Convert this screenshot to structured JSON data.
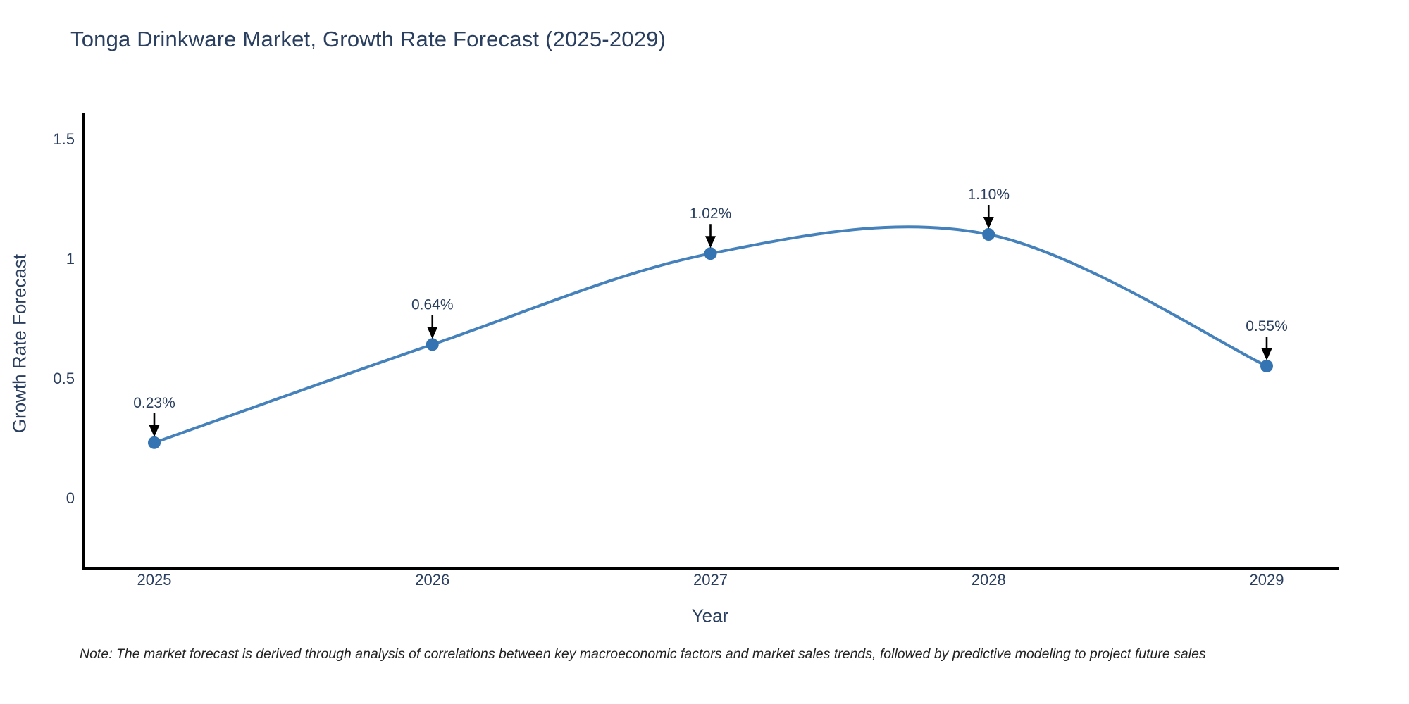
{
  "title": {
    "text": "Tonga Drinkware Market, Growth Rate Forecast (2025-2029)"
  },
  "note": {
    "text": "Note: The market forecast is derived through analysis of correlations between key macroeconomic factors and market sales trends, followed by predictive modeling to project future sales"
  },
  "chart_data": {
    "type": "line",
    "title": "Tonga Drinkware Market, Growth Rate Forecast (2025-2029)",
    "x": [
      2025,
      2026,
      2027,
      2028,
      2029
    ],
    "x_tick_labels": [
      "2025",
      "2026",
      "2027",
      "2028",
      "2029"
    ],
    "series": [
      {
        "name": "Growth Rate Forecast",
        "values": [
          0.23,
          0.64,
          1.02,
          1.1,
          0.55
        ]
      }
    ],
    "point_labels": [
      "0.23%",
      "0.64%",
      "1.02%",
      "1.10%",
      "0.55%"
    ],
    "xlabel": "Year",
    "ylabel": "Growth Rate Forecast",
    "yticks": [
      0,
      0.5,
      1,
      1.5
    ],
    "ytick_labels": [
      "0",
      "0.5",
      "1",
      "1.5"
    ],
    "ylim": [
      -0.3,
      1.61
    ],
    "line_shape": "spline",
    "grid": false,
    "legend_position": "none",
    "marker": "circle",
    "annotation_arrows": true,
    "colors": {
      "line": "#4581bb",
      "marker": "#3474b3",
      "axis": "#000000",
      "arrow": "#000000",
      "tick_text": "#2a3f5f",
      "annotation_text": "#2a3f5f",
      "title_text": "#2a3f5f",
      "axis_title_text": "#2a3f5f",
      "note_text": "#222222",
      "background": "#ffffff"
    }
  }
}
